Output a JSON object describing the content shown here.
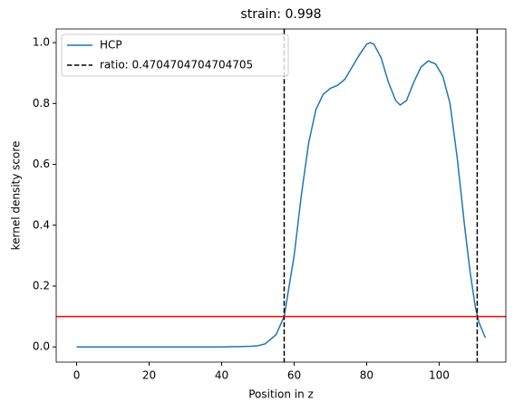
{
  "chart_data": {
    "type": "line",
    "title": "strain: 0.998",
    "xlabel": "Position in z",
    "ylabel": "kernel density score",
    "x": [
      0,
      10,
      20,
      30,
      40,
      45,
      48,
      50,
      52,
      55,
      57.25,
      60,
      62,
      64,
      66,
      68,
      70,
      72,
      74,
      76,
      78,
      80,
      81,
      82,
      84,
      86,
      88,
      89.25,
      91,
      93,
      95,
      97,
      99,
      101,
      103,
      105,
      107,
      108.5,
      110,
      111,
      112.75
    ],
    "series": [
      {
        "name": "HCP",
        "color": "#1f77b4",
        "values": [
          0,
          0,
          0,
          0,
          0,
          0.001,
          0.002,
          0.004,
          0.01,
          0.04,
          0.1,
          0.3,
          0.5,
          0.67,
          0.78,
          0.83,
          0.85,
          0.86,
          0.88,
          0.92,
          0.96,
          0.995,
          1.0,
          0.995,
          0.95,
          0.87,
          0.81,
          0.795,
          0.81,
          0.87,
          0.92,
          0.94,
          0.93,
          0.89,
          0.8,
          0.62,
          0.4,
          0.25,
          0.13,
          0.08,
          0.03
        ]
      }
    ],
    "vlines": {
      "name": "ratio: 0.4704704704704705",
      "color": "#000000",
      "values": [
        57.25,
        110.5
      ]
    },
    "hline": {
      "value": 0.1,
      "color": "#ff0000"
    },
    "xlim": [
      -5.64,
      118.4
    ],
    "ylim": [
      -0.05,
      1.045
    ],
    "xticks": [
      0,
      20,
      40,
      60,
      80,
      100
    ],
    "yticks": [
      {
        "value": 0,
        "label": "0.0"
      },
      {
        "value": 0.2,
        "label": "0.2"
      },
      {
        "value": 0.4,
        "label": "0.4"
      },
      {
        "value": 0.6,
        "label": "0.6"
      },
      {
        "value": 0.8,
        "label": "0.8"
      },
      {
        "value": 1,
        "label": "1.0"
      }
    ],
    "legend": "upper left"
  }
}
